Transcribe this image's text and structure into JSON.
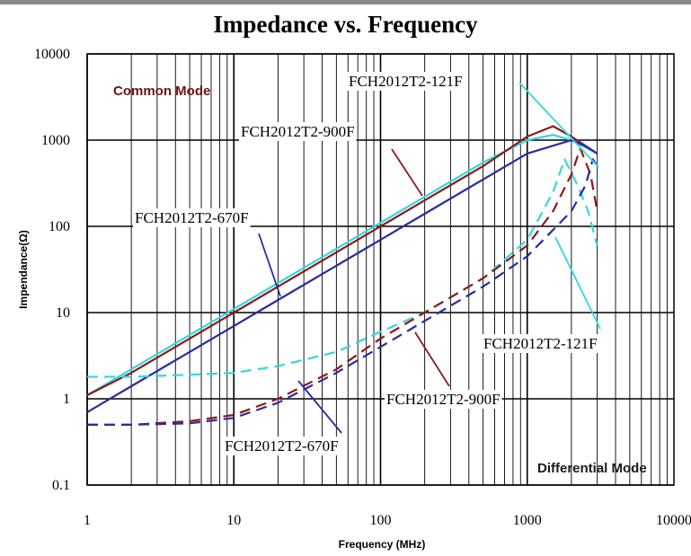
{
  "chart_data": {
    "type": "line",
    "title": "Impedance vs. Frequency",
    "xlabel": "Frequency (MHz)",
    "ylabel": "Impendance(Ω)",
    "xscale": "log",
    "yscale": "log",
    "xlim": [
      1,
      10000
    ],
    "ylim": [
      0.1,
      10000
    ],
    "x_ticks": [
      "1",
      "10",
      "100",
      "1000",
      "10000"
    ],
    "y_ticks": [
      "10000",
      "1000",
      "100",
      "10",
      "1",
      "0.1"
    ],
    "grid": true,
    "annotations": {
      "common_mode": "Common Mode",
      "differential_mode": "Differential Mode"
    },
    "series": [
      {
        "name": "FCH2012T2-121F",
        "mode": "Common Mode",
        "color": "#33d6e0",
        "dash": "solid",
        "x": [
          1,
          2,
          5,
          10,
          20,
          50,
          100,
          200,
          500,
          1000,
          1500,
          2000,
          3000
        ],
        "y": [
          1.1,
          2.2,
          5.5,
          11,
          22,
          55,
          110,
          220,
          550,
          1000,
          1150,
          1000,
          700
        ]
      },
      {
        "name": "FCH2012T2-900F",
        "mode": "Common Mode",
        "color": "#8b1a1a",
        "dash": "solid",
        "x": [
          1,
          2,
          5,
          10,
          20,
          50,
          100,
          200,
          500,
          1000,
          1500,
          2000,
          3000
        ],
        "y": [
          1.1,
          2.0,
          5.0,
          10,
          20,
          50,
          100,
          200,
          500,
          1100,
          1450,
          1100,
          700
        ]
      },
      {
        "name": "FCH2012T2-670F",
        "mode": "Common Mode",
        "color": "#2a2aa0",
        "dash": "solid",
        "x": [
          1,
          2,
          5,
          10,
          20,
          50,
          100,
          200,
          500,
          1000,
          2000,
          2500,
          3000
        ],
        "y": [
          0.7,
          1.4,
          3.5,
          7,
          14,
          35,
          70,
          140,
          350,
          700,
          1000,
          850,
          700
        ]
      },
      {
        "name": "FCH2012T2-121F",
        "mode": "Differential Mode",
        "color": "#33d6e0",
        "dash": "dashed",
        "x": [
          1,
          2,
          5,
          10,
          20,
          50,
          100,
          200,
          500,
          1000,
          1500,
          1800,
          2200,
          2600,
          3000
        ],
        "y": [
          1.8,
          1.8,
          1.9,
          2.0,
          2.4,
          3.5,
          6,
          10,
          25,
          70,
          250,
          600,
          300,
          150,
          60
        ]
      },
      {
        "name": "FCH2012T2-900F",
        "mode": "Differential Mode",
        "color": "#8b1a1a",
        "dash": "dashed",
        "x": [
          1,
          2,
          5,
          10,
          20,
          50,
          100,
          200,
          500,
          1000,
          1500,
          2000,
          2300,
          2700,
          3000
        ],
        "y": [
          0.5,
          0.5,
          0.55,
          0.65,
          1.0,
          2.2,
          5,
          10,
          25,
          60,
          150,
          400,
          800,
          400,
          150
        ]
      },
      {
        "name": "FCH2012T2-670F",
        "mode": "Differential Mode",
        "color": "#2a2aa0",
        "dash": "dashed",
        "x": [
          1,
          2,
          5,
          10,
          20,
          50,
          100,
          200,
          500,
          1000,
          2000,
          2500,
          2800,
          3000
        ],
        "y": [
          0.5,
          0.5,
          0.52,
          0.6,
          0.9,
          2.0,
          4,
          8,
          20,
          45,
          150,
          300,
          600,
          500
        ]
      }
    ],
    "callouts": [
      {
        "text": "FCH2012T2-121F",
        "series_index": 0
      },
      {
        "text": "FCH2012T2-900F",
        "series_index": 1
      },
      {
        "text": "FCH2012T2-670F",
        "series_index": 2
      },
      {
        "text": "FCH2012T2-121F",
        "series_index": 3
      },
      {
        "text": "FCH2012T2-900F",
        "series_index": 4
      },
      {
        "text": "FCH2012T2-670F",
        "series_index": 5
      }
    ]
  }
}
